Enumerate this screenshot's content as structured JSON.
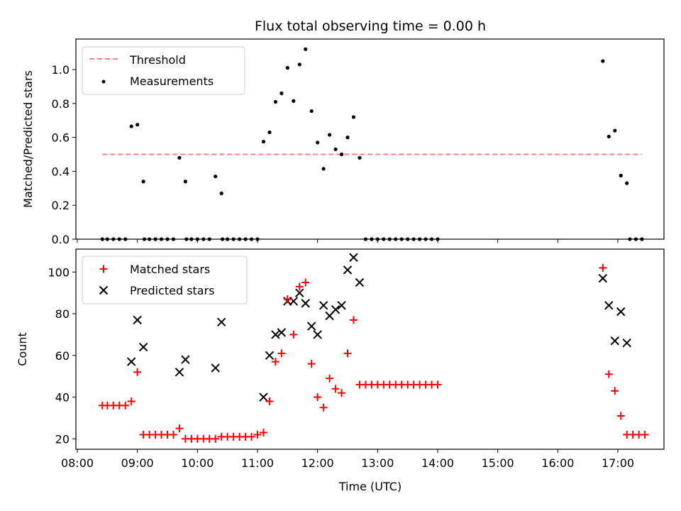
{
  "chart_data": [
    {
      "type": "scatter",
      "title": "Flux total observing time = 0.00 h",
      "xlabel": "",
      "ylabel": "Matched/Predicted stars",
      "ylim": [
        0,
        1.18
      ],
      "yticks": [
        "0.0",
        "0.2",
        "0.4",
        "0.6",
        "0.8",
        "1.0"
      ],
      "legend_position": "upper-left",
      "threshold": {
        "name": "Threshold",
        "value": 0.5,
        "x_start": "08:25",
        "x_end": "17:24",
        "color": "#ff7f7f"
      },
      "series": [
        {
          "name": "Measurements",
          "color": "#000000",
          "marker": "dot",
          "points": [
            [
              "08:25",
              0
            ],
            [
              "08:30",
              0
            ],
            [
              "08:36",
              0
            ],
            [
              "08:42",
              0
            ],
            [
              "08:48",
              0
            ],
            [
              "08:54",
              0.665
            ],
            [
              "09:00",
              0.675
            ],
            [
              "09:06",
              0.34
            ],
            [
              "09:07",
              0
            ],
            [
              "09:12",
              0
            ],
            [
              "09:18",
              0
            ],
            [
              "09:24",
              0
            ],
            [
              "09:30",
              0
            ],
            [
              "09:36",
              0
            ],
            [
              "09:42",
              0.48
            ],
            [
              "09:48",
              0.34
            ],
            [
              "09:49",
              0
            ],
            [
              "09:54",
              0
            ],
            [
              "10:00",
              0
            ],
            [
              "10:06",
              0
            ],
            [
              "10:12",
              0
            ],
            [
              "10:18",
              0.37
            ],
            [
              "10:24",
              0.27
            ],
            [
              "10:25",
              0
            ],
            [
              "10:30",
              0
            ],
            [
              "10:36",
              0
            ],
            [
              "10:42",
              0
            ],
            [
              "10:48",
              0
            ],
            [
              "10:54",
              0
            ],
            [
              "11:00",
              0
            ],
            [
              "11:06",
              0.575
            ],
            [
              "11:12",
              0.63
            ],
            [
              "11:18",
              0.81
            ],
            [
              "11:24",
              0.86
            ],
            [
              "11:30",
              1.01
            ],
            [
              "11:36",
              0.815
            ],
            [
              "11:42",
              1.03
            ],
            [
              "11:48",
              1.12
            ],
            [
              "11:54",
              0.755
            ],
            [
              "12:00",
              0.57
            ],
            [
              "12:06",
              0.415
            ],
            [
              "12:12",
              0.615
            ],
            [
              "12:18",
              0.53
            ],
            [
              "12:24",
              0.5
            ],
            [
              "12:30",
              0.6
            ],
            [
              "12:36",
              0.72
            ],
            [
              "12:42",
              0.48
            ],
            [
              "12:48",
              0
            ],
            [
              "12:54",
              0
            ],
            [
              "13:00",
              0
            ],
            [
              "13:06",
              0
            ],
            [
              "13:12",
              0
            ],
            [
              "13:18",
              0
            ],
            [
              "13:24",
              0
            ],
            [
              "13:30",
              0
            ],
            [
              "13:36",
              0
            ],
            [
              "13:42",
              0
            ],
            [
              "13:48",
              0
            ],
            [
              "13:54",
              0
            ],
            [
              "14:00",
              0
            ],
            [
              "16:45",
              1.05
            ],
            [
              "16:51",
              0.605
            ],
            [
              "16:57",
              0.64
            ],
            [
              "17:03",
              0.375
            ],
            [
              "17:09",
              0.33
            ],
            [
              "17:12",
              0
            ],
            [
              "17:18",
              0
            ],
            [
              "17:24",
              0
            ]
          ]
        }
      ]
    },
    {
      "type": "scatter",
      "title": "",
      "xlabel": "Time (UTC)",
      "ylabel": "Count",
      "ylim": [
        15,
        111
      ],
      "yticks": [
        "20",
        "40",
        "60",
        "80",
        "100"
      ],
      "xticks": [
        "08:00",
        "09:00",
        "10:00",
        "11:00",
        "12:00",
        "13:00",
        "14:00",
        "15:00",
        "16:00",
        "17:00"
      ],
      "legend_position": "upper-left",
      "series": [
        {
          "name": "Matched stars",
          "color": "#ff0000",
          "marker": "plus",
          "points": [
            [
              "08:25",
              36
            ],
            [
              "08:30",
              36
            ],
            [
              "08:36",
              36
            ],
            [
              "08:42",
              36
            ],
            [
              "08:48",
              36
            ],
            [
              "08:54",
              38
            ],
            [
              "09:00",
              52
            ],
            [
              "09:06",
              22
            ],
            [
              "09:12",
              22
            ],
            [
              "09:18",
              22
            ],
            [
              "09:24",
              22
            ],
            [
              "09:30",
              22
            ],
            [
              "09:36",
              22
            ],
            [
              "09:42",
              25
            ],
            [
              "09:48",
              20
            ],
            [
              "09:54",
              20
            ],
            [
              "10:00",
              20
            ],
            [
              "10:06",
              20
            ],
            [
              "10:12",
              20
            ],
            [
              "10:18",
              20
            ],
            [
              "10:24",
              21
            ],
            [
              "10:30",
              21
            ],
            [
              "10:36",
              21
            ],
            [
              "10:42",
              21
            ],
            [
              "10:48",
              21
            ],
            [
              "10:54",
              21
            ],
            [
              "11:00",
              22
            ],
            [
              "11:06",
              23
            ],
            [
              "11:12",
              38
            ],
            [
              "11:18",
              57
            ],
            [
              "11:24",
              61
            ],
            [
              "11:30",
              87
            ],
            [
              "11:36",
              70
            ],
            [
              "11:42",
              93
            ],
            [
              "11:48",
              95
            ],
            [
              "11:54",
              56
            ],
            [
              "12:00",
              40
            ],
            [
              "12:06",
              35
            ],
            [
              "12:12",
              49
            ],
            [
              "12:18",
              44
            ],
            [
              "12:24",
              42
            ],
            [
              "12:30",
              61
            ],
            [
              "12:36",
              77
            ],
            [
              "12:42",
              46
            ],
            [
              "12:48",
              46
            ],
            [
              "12:54",
              46
            ],
            [
              "13:00",
              46
            ],
            [
              "13:06",
              46
            ],
            [
              "13:12",
              46
            ],
            [
              "13:18",
              46
            ],
            [
              "13:24",
              46
            ],
            [
              "13:30",
              46
            ],
            [
              "13:36",
              46
            ],
            [
              "13:42",
              46
            ],
            [
              "13:48",
              46
            ],
            [
              "13:54",
              46
            ],
            [
              "14:00",
              46
            ],
            [
              "16:45",
              102
            ],
            [
              "16:51",
              51
            ],
            [
              "16:57",
              43
            ],
            [
              "17:03",
              31
            ],
            [
              "17:09",
              22
            ],
            [
              "17:15",
              22
            ],
            [
              "17:21",
              22
            ],
            [
              "17:27",
              22
            ]
          ]
        },
        {
          "name": "Predicted stars",
          "color": "#000000",
          "marker": "x",
          "points": [
            [
              "08:54",
              57
            ],
            [
              "09:00",
              77
            ],
            [
              "09:06",
              64
            ],
            [
              "09:42",
              52
            ],
            [
              "09:48",
              58
            ],
            [
              "10:18",
              54
            ],
            [
              "10:24",
              76
            ],
            [
              "11:06",
              40
            ],
            [
              "11:12",
              60
            ],
            [
              "11:18",
              70
            ],
            [
              "11:24",
              71
            ],
            [
              "11:30",
              86
            ],
            [
              "11:36",
              86
            ],
            [
              "11:42",
              90
            ],
            [
              "11:48",
              85
            ],
            [
              "11:54",
              74
            ],
            [
              "12:00",
              70
            ],
            [
              "12:06",
              84
            ],
            [
              "12:12",
              79
            ],
            [
              "12:18",
              82
            ],
            [
              "12:24",
              84
            ],
            [
              "12:30",
              101
            ],
            [
              "12:36",
              107
            ],
            [
              "12:42",
              95
            ],
            [
              "16:45",
              97
            ],
            [
              "16:51",
              84
            ],
            [
              "16:57",
              67
            ],
            [
              "17:03",
              81
            ],
            [
              "17:09",
              66
            ]
          ]
        }
      ]
    }
  ]
}
